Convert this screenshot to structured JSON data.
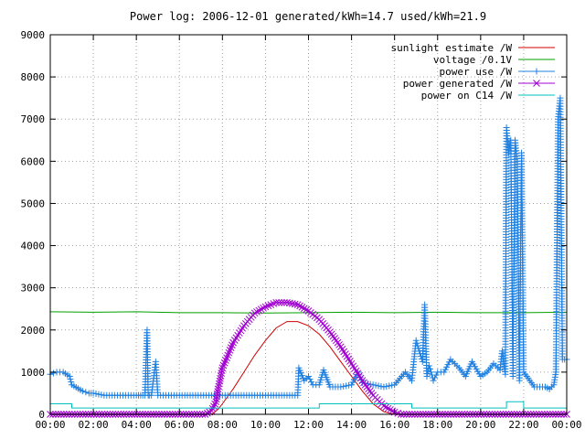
{
  "chart_data": {
    "type": "line",
    "title": "Power log: 2006-12-01 generated/kWh=14.7 used/kWh=21.9",
    "xlabel": "",
    "ylabel": "",
    "x_unit": "hours",
    "xlim": [
      0,
      24
    ],
    "ylim": [
      0,
      9000
    ],
    "grid": true,
    "legend_position": "top-right",
    "x_ticks": [
      0,
      2,
      4,
      6,
      8,
      10,
      12,
      14,
      16,
      18,
      20,
      22,
      24
    ],
    "x_tick_labels": [
      "00:00",
      "02:00",
      "04:00",
      "06:00",
      "08:00",
      "10:00",
      "12:00",
      "14:00",
      "16:00",
      "18:00",
      "20:00",
      "22:00",
      "00:00"
    ],
    "y_ticks": [
      0,
      1000,
      2000,
      3000,
      4000,
      5000,
      6000,
      7000,
      8000,
      9000
    ],
    "y_tick_labels": [
      "0",
      "1000",
      "2000",
      "3000",
      "4000",
      "5000",
      "6000",
      "7000",
      "8000",
      "9000"
    ],
    "series": [
      {
        "name": "sunlight estimate /W",
        "color": "#d00000",
        "marker": "none",
        "x": [
          0,
          7.5,
          7.8,
          8.0,
          8.5,
          9.0,
          9.5,
          10.0,
          10.5,
          11.0,
          11.5,
          12.0,
          12.5,
          13.0,
          13.5,
          14.0,
          14.5,
          15.0,
          15.5,
          16.0,
          24
        ],
        "y": [
          0,
          0,
          120,
          250,
          600,
          1000,
          1400,
          1750,
          2050,
          2200,
          2200,
          2100,
          1900,
          1600,
          1250,
          900,
          550,
          250,
          60,
          0,
          0
        ]
      },
      {
        "name": "voltage /0.1V",
        "color": "#00a000",
        "marker": "none",
        "x": [
          0,
          2,
          4,
          6,
          8,
          10,
          12,
          14,
          16,
          18,
          20,
          22,
          24
        ],
        "y": [
          2430,
          2420,
          2430,
          2410,
          2410,
          2400,
          2410,
          2420,
          2410,
          2420,
          2410,
          2410,
          2420
        ]
      },
      {
        "name": "power use /W",
        "color": "#2080e0",
        "marker": "plus",
        "x": [
          0,
          0.3,
          0.6,
          0.9,
          1.0,
          1.5,
          1.8,
          2.0,
          2.5,
          3.0,
          3.5,
          4.0,
          4.2,
          4.4,
          4.5,
          4.55,
          4.6,
          4.7,
          4.9,
          5.0,
          5.5,
          6.0,
          6.5,
          7.0,
          7.5,
          8.0,
          8.5,
          9.0,
          9.5,
          10.0,
          10.5,
          11.0,
          11.5,
          11.55,
          11.8,
          12.0,
          12.2,
          12.5,
          12.7,
          13.0,
          13.5,
          14.0,
          14.3,
          14.5,
          15.0,
          15.5,
          16.0,
          16.5,
          16.8,
          17.0,
          17.3,
          17.4,
          17.5,
          17.6,
          17.7,
          17.8,
          18.0,
          18.3,
          18.6,
          19.0,
          19.3,
          19.6,
          20.0,
          20.3,
          20.6,
          20.9,
          21.0,
          21.15,
          21.2,
          21.3,
          21.4,
          21.5,
          21.6,
          21.7,
          21.8,
          21.9,
          22.0,
          22.5,
          23.0,
          23.2,
          23.4,
          23.5,
          23.6,
          23.7,
          23.8,
          24
        ],
        "y": [
          950,
          1000,
          1000,
          900,
          700,
          550,
          500,
          500,
          450,
          450,
          450,
          450,
          450,
          450,
          2000,
          450,
          450,
          450,
          1250,
          450,
          450,
          450,
          450,
          450,
          450,
          450,
          450,
          450,
          450,
          450,
          450,
          450,
          450,
          1100,
          800,
          900,
          700,
          700,
          1050,
          650,
          650,
          700,
          1000,
          750,
          700,
          650,
          700,
          1000,
          800,
          1750,
          1250,
          2600,
          900,
          1150,
          1000,
          800,
          1000,
          1000,
          1300,
          1100,
          900,
          1250,
          900,
          1000,
          1200,
          1050,
          1500,
          950,
          6800,
          6200,
          6500,
          900,
          6500,
          6000,
          800,
          6200,
          1000,
          650,
          650,
          600,
          700,
          1000,
          7000,
          7500,
          1300,
          1300
        ]
      },
      {
        "name": "power generated /W",
        "color": "#a000d0",
        "marker": "x",
        "x": [
          0,
          7.2,
          7.5,
          7.7,
          7.8,
          8.0,
          8.5,
          9.0,
          9.5,
          10.0,
          10.5,
          11.0,
          11.5,
          12.0,
          12.5,
          13.0,
          13.5,
          14.0,
          14.5,
          15.0,
          15.5,
          16.0,
          16.3,
          24
        ],
        "y": [
          0,
          0,
          80,
          300,
          600,
          1100,
          1700,
          2100,
          2400,
          2550,
          2650,
          2650,
          2600,
          2450,
          2250,
          1950,
          1600,
          1200,
          800,
          450,
          200,
          50,
          0,
          0
        ]
      },
      {
        "name": "power on C14 /W",
        "color": "#00c0c0",
        "marker": "none",
        "x": [
          0,
          1.0,
          1.0,
          7.5,
          7.5,
          12.5,
          12.5,
          16.8,
          16.8,
          20.0,
          20.0,
          21.2,
          21.2,
          22.0,
          22.0,
          24
        ],
        "y": [
          250,
          250,
          150,
          150,
          150,
          150,
          250,
          250,
          150,
          150,
          150,
          150,
          300,
          300,
          150,
          150
        ]
      }
    ]
  }
}
